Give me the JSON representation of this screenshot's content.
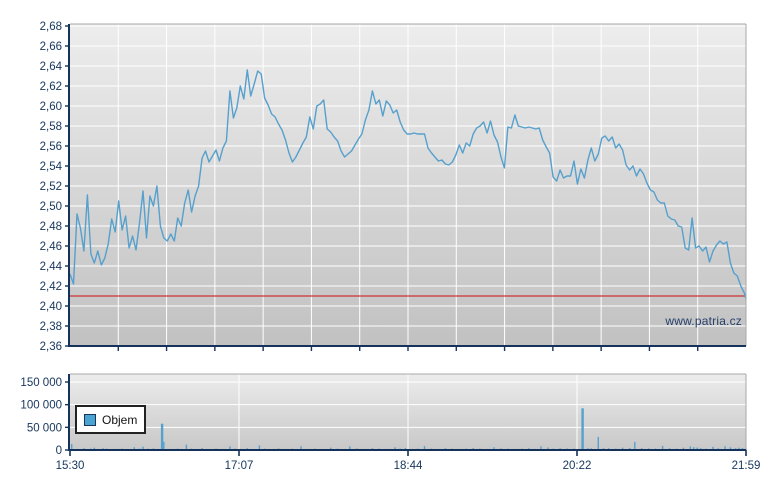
{
  "page": {
    "background": "#ffffff",
    "watermark": "www.patria.cz"
  },
  "colors": {
    "line_blue": "#56a0cd",
    "bar_blue": "#56a0cd",
    "reference_red": "#cc3333",
    "axis_navy": "#14325a",
    "label_navy": "#16365c",
    "grid_white": "#ffffff",
    "plot_bg_top": "#ededed",
    "plot_bg_bottom": "#c1c1c1",
    "border_gray": "#a8a8a8",
    "legend_swatch_blue": "#4aa3d1"
  },
  "legend": {
    "volume_label": "Objem"
  },
  "chart_data": [
    {
      "id": "price",
      "type": "line",
      "title": "",
      "xlabel": "",
      "ylabel": "",
      "x_unit": "minutes_after_15:30",
      "x_range_minutes": [
        0,
        389
      ],
      "x_tick_labels": [
        "15:30",
        "17:07",
        "18:44",
        "20:22",
        "21:59"
      ],
      "x_minor_grid_divisions": 14,
      "ylim": [
        2.36,
        2.68
      ],
      "y_tick_step": 0.02,
      "y_tick_labels": [
        "2,68",
        "2,66",
        "2,64",
        "2,62",
        "2,60",
        "2,58",
        "2,56",
        "2,54",
        "2,52",
        "2,50",
        "2,48",
        "2,46",
        "2,44",
        "2,42",
        "2,40",
        "2,38",
        "2,36"
      ],
      "y_tick_values": [
        2.68,
        2.66,
        2.64,
        2.62,
        2.6,
        2.58,
        2.56,
        2.54,
        2.52,
        2.5,
        2.48,
        2.46,
        2.44,
        2.42,
        2.4,
        2.38,
        2.36
      ],
      "reference_line_value": 2.41,
      "grid": true,
      "points": [
        [
          0,
          2.432
        ],
        [
          2,
          2.422
        ],
        [
          4,
          2.492
        ],
        [
          6,
          2.478
        ],
        [
          8,
          2.455
        ],
        [
          10,
          2.511
        ],
        [
          12,
          2.452
        ],
        [
          14,
          2.443
        ],
        [
          16,
          2.455
        ],
        [
          18,
          2.441
        ],
        [
          20,
          2.448
        ],
        [
          22,
          2.462
        ],
        [
          24,
          2.487
        ],
        [
          26,
          2.474
        ],
        [
          28,
          2.505
        ],
        [
          30,
          2.476
        ],
        [
          32,
          2.49
        ],
        [
          34,
          2.458
        ],
        [
          36,
          2.47
        ],
        [
          38,
          2.456
        ],
        [
          40,
          2.483
        ],
        [
          42,
          2.515
        ],
        [
          44,
          2.468
        ],
        [
          46,
          2.51
        ],
        [
          48,
          2.5
        ],
        [
          50,
          2.52
        ],
        [
          52,
          2.48
        ],
        [
          54,
          2.468
        ],
        [
          56,
          2.465
        ],
        [
          58,
          2.472
        ],
        [
          60,
          2.465
        ],
        [
          62,
          2.488
        ],
        [
          64,
          2.48
        ],
        [
          66,
          2.503
        ],
        [
          68,
          2.516
        ],
        [
          70,
          2.494
        ],
        [
          72,
          2.51
        ],
        [
          74,
          2.52
        ],
        [
          76,
          2.548
        ],
        [
          78,
          2.555
        ],
        [
          80,
          2.544
        ],
        [
          82,
          2.55
        ],
        [
          84,
          2.556
        ],
        [
          86,
          2.545
        ],
        [
          88,
          2.558
        ],
        [
          90,
          2.565
        ],
        [
          92,
          2.615
        ],
        [
          94,
          2.588
        ],
        [
          96,
          2.598
        ],
        [
          98,
          2.62
        ],
        [
          100,
          2.607
        ],
        [
          102,
          2.636
        ],
        [
          104,
          2.61
        ],
        [
          106,
          2.622
        ],
        [
          108,
          2.635
        ],
        [
          110,
          2.632
        ],
        [
          112,
          2.608
        ],
        [
          114,
          2.601
        ],
        [
          116,
          2.592
        ],
        [
          118,
          2.589
        ],
        [
          120,
          2.582
        ],
        [
          122,
          2.576
        ],
        [
          124,
          2.566
        ],
        [
          126,
          2.553
        ],
        [
          128,
          2.544
        ],
        [
          130,
          2.549
        ],
        [
          132,
          2.556
        ],
        [
          134,
          2.563
        ],
        [
          136,
          2.569
        ],
        [
          138,
          2.589
        ],
        [
          140,
          2.577
        ],
        [
          142,
          2.6
        ],
        [
          144,
          2.602
        ],
        [
          146,
          2.606
        ],
        [
          148,
          2.577
        ],
        [
          150,
          2.574
        ],
        [
          152,
          2.569
        ],
        [
          154,
          2.565
        ],
        [
          156,
          2.555
        ],
        [
          158,
          2.549
        ],
        [
          160,
          2.552
        ],
        [
          162,
          2.555
        ],
        [
          164,
          2.561
        ],
        [
          166,
          2.567
        ],
        [
          168,
          2.572
        ],
        [
          170,
          2.586
        ],
        [
          172,
          2.596
        ],
        [
          174,
          2.615
        ],
        [
          176,
          2.602
        ],
        [
          178,
          2.606
        ],
        [
          180,
          2.59
        ],
        [
          182,
          2.605
        ],
        [
          184,
          2.601
        ],
        [
          186,
          2.593
        ],
        [
          188,
          2.596
        ],
        [
          190,
          2.584
        ],
        [
          192,
          2.576
        ],
        [
          194,
          2.572
        ],
        [
          196,
          2.572
        ],
        [
          198,
          2.573
        ],
        [
          200,
          2.572
        ],
        [
          202,
          2.572
        ],
        [
          204,
          2.572
        ],
        [
          206,
          2.558
        ],
        [
          208,
          2.553
        ],
        [
          210,
          2.549
        ],
        [
          212,
          2.545
        ],
        [
          214,
          2.546
        ],
        [
          216,
          2.542
        ],
        [
          218,
          2.541
        ],
        [
          220,
          2.544
        ],
        [
          222,
          2.551
        ],
        [
          224,
          2.561
        ],
        [
          226,
          2.553
        ],
        [
          228,
          2.563
        ],
        [
          230,
          2.56
        ],
        [
          232,
          2.572
        ],
        [
          234,
          2.578
        ],
        [
          236,
          2.58
        ],
        [
          238,
          2.584
        ],
        [
          240,
          2.573
        ],
        [
          242,
          2.585
        ],
        [
          244,
          2.571
        ],
        [
          246,
          2.564
        ],
        [
          248,
          2.549
        ],
        [
          250,
          2.538
        ],
        [
          252,
          2.579
        ],
        [
          254,
          2.578
        ],
        [
          256,
          2.591
        ],
        [
          258,
          2.58
        ],
        [
          260,
          2.579
        ],
        [
          262,
          2.578
        ],
        [
          264,
          2.579
        ],
        [
          266,
          2.578
        ],
        [
          268,
          2.577
        ],
        [
          270,
          2.578
        ],
        [
          272,
          2.566
        ],
        [
          274,
          2.559
        ],
        [
          276,
          2.553
        ],
        [
          278,
          2.529
        ],
        [
          280,
          2.525
        ],
        [
          282,
          2.536
        ],
        [
          284,
          2.528
        ],
        [
          286,
          2.53
        ],
        [
          288,
          2.53
        ],
        [
          290,
          2.545
        ],
        [
          292,
          2.522
        ],
        [
          294,
          2.537
        ],
        [
          296,
          2.528
        ],
        [
          298,
          2.546
        ],
        [
          300,
          2.558
        ],
        [
          302,
          2.545
        ],
        [
          304,
          2.552
        ],
        [
          306,
          2.568
        ],
        [
          308,
          2.57
        ],
        [
          310,
          2.565
        ],
        [
          312,
          2.569
        ],
        [
          314,
          2.558
        ],
        [
          316,
          2.562
        ],
        [
          318,
          2.556
        ],
        [
          320,
          2.541
        ],
        [
          322,
          2.536
        ],
        [
          324,
          2.54
        ],
        [
          326,
          2.53
        ],
        [
          328,
          2.537
        ],
        [
          330,
          2.532
        ],
        [
          332,
          2.523
        ],
        [
          334,
          2.516
        ],
        [
          336,
          2.514
        ],
        [
          338,
          2.506
        ],
        [
          340,
          2.503
        ],
        [
          342,
          2.503
        ],
        [
          344,
          2.49
        ],
        [
          346,
          2.487
        ],
        [
          348,
          2.486
        ],
        [
          350,
          2.48
        ],
        [
          352,
          2.479
        ],
        [
          354,
          2.458
        ],
        [
          356,
          2.456
        ],
        [
          358,
          2.488
        ],
        [
          360,
          2.458
        ],
        [
          362,
          2.46
        ],
        [
          364,
          2.455
        ],
        [
          366,
          2.459
        ],
        [
          368,
          2.444
        ],
        [
          370,
          2.455
        ],
        [
          372,
          2.461
        ],
        [
          374,
          2.465
        ],
        [
          376,
          2.462
        ],
        [
          378,
          2.464
        ],
        [
          380,
          2.443
        ],
        [
          382,
          2.433
        ],
        [
          384,
          2.43
        ],
        [
          386,
          2.42
        ],
        [
          388,
          2.413
        ],
        [
          389,
          2.407
        ]
      ]
    },
    {
      "id": "volume",
      "type": "bar",
      "title": "",
      "legend_label": "Objem",
      "x_unit": "minutes_after_15:30",
      "x_range_minutes": [
        0,
        389
      ],
      "x_tick_labels": [
        "15:30",
        "17:07",
        "18:44",
        "20:22",
        "21:59"
      ],
      "ylim": [
        0,
        150000
      ],
      "y_tick_values": [
        0,
        50000,
        100000,
        150000
      ],
      "y_tick_labels": [
        "0",
        "50 000",
        "100 000",
        "150 000"
      ],
      "grid": true,
      "bars": [
        [
          1,
          13000
        ],
        [
          4,
          2500
        ],
        [
          8,
          4000
        ],
        [
          12,
          3000
        ],
        [
          14,
          5000
        ],
        [
          19,
          4000
        ],
        [
          21,
          3000
        ],
        [
          25,
          2500
        ],
        [
          30,
          3000
        ],
        [
          33,
          2000
        ],
        [
          37,
          6000
        ],
        [
          40,
          3000
        ],
        [
          42,
          7500
        ],
        [
          45,
          3000
        ],
        [
          48,
          3500
        ],
        [
          53,
          58000
        ],
        [
          54,
          18000
        ],
        [
          58,
          2500
        ],
        [
          62,
          3000
        ],
        [
          67,
          12000
        ],
        [
          70,
          3000
        ],
        [
          76,
          4500
        ],
        [
          80,
          2000
        ],
        [
          84,
          3000
        ],
        [
          88,
          2500
        ],
        [
          92,
          8000
        ],
        [
          95,
          3000
        ],
        [
          98,
          2500
        ],
        [
          102,
          4000
        ],
        [
          105,
          2000
        ],
        [
          109,
          10000
        ],
        [
          112,
          3000
        ],
        [
          116,
          2000
        ],
        [
          120,
          3500
        ],
        [
          124,
          2500
        ],
        [
          128,
          3000
        ],
        [
          133,
          8000
        ],
        [
          137,
          2500
        ],
        [
          141,
          3000
        ],
        [
          145,
          2000
        ],
        [
          150,
          5000
        ],
        [
          154,
          3000
        ],
        [
          158,
          2500
        ],
        [
          161,
          8000
        ],
        [
          165,
          3500
        ],
        [
          170,
          2500
        ],
        [
          174,
          4000
        ],
        [
          178,
          3000
        ],
        [
          182,
          2500
        ],
        [
          187,
          6000
        ],
        [
          190,
          3000
        ],
        [
          193,
          4000
        ],
        [
          197,
          2500
        ],
        [
          200,
          3000
        ],
        [
          204,
          8500
        ],
        [
          208,
          3000
        ],
        [
          212,
          2500
        ],
        [
          216,
          4000
        ],
        [
          220,
          3000
        ],
        [
          224,
          2500
        ],
        [
          228,
          3000
        ],
        [
          232,
          4500
        ],
        [
          236,
          3000
        ],
        [
          240,
          2500
        ],
        [
          244,
          6000
        ],
        [
          248,
          3500
        ],
        [
          252,
          3000
        ],
        [
          256,
          2500
        ],
        [
          260,
          3000
        ],
        [
          264,
          4000
        ],
        [
          268,
          2500
        ],
        [
          271,
          8000
        ],
        [
          275,
          5500
        ],
        [
          278,
          3000
        ],
        [
          282,
          4000
        ],
        [
          286,
          3500
        ],
        [
          290,
          3000
        ],
        [
          293,
          2500
        ],
        [
          295,
          92000
        ],
        [
          298,
          4000
        ],
        [
          300,
          3500
        ],
        [
          304,
          29000
        ],
        [
          307,
          4000
        ],
        [
          310,
          4000
        ],
        [
          314,
          3000
        ],
        [
          318,
          5000
        ],
        [
          322,
          4500
        ],
        [
          325,
          18000
        ],
        [
          329,
          4000
        ],
        [
          333,
          3500
        ],
        [
          337,
          3000
        ],
        [
          341,
          9000
        ],
        [
          345,
          4000
        ],
        [
          349,
          3000
        ],
        [
          353,
          5000
        ],
        [
          357,
          8000
        ],
        [
          359,
          6000
        ],
        [
          361,
          5500
        ],
        [
          363,
          4000
        ],
        [
          366,
          3000
        ],
        [
          370,
          7000
        ],
        [
          373,
          4000
        ],
        [
          377,
          8000
        ],
        [
          380,
          6000
        ],
        [
          383,
          4000
        ],
        [
          385,
          5000
        ],
        [
          387,
          4500
        ],
        [
          389,
          3000
        ]
      ]
    }
  ]
}
